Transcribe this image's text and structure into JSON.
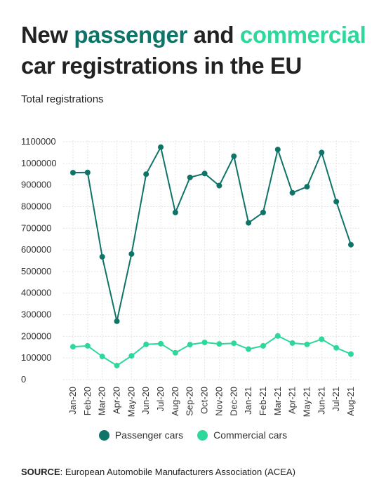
{
  "title": {
    "part1": "New ",
    "highlight1": "passenger",
    "part2": " and ",
    "highlight2": "commercial",
    "part3": "car registrations in the EU"
  },
  "subtitle": "Total registrations",
  "source": {
    "label": "SOURCE",
    "text": ": European Automobile Manufacturers Association (ACEA)"
  },
  "colors": {
    "passenger": "#0e7468",
    "commercial": "#2ed89a"
  },
  "chart_data": {
    "type": "line",
    "categories": [
      "Jan-20",
      "Feb-20",
      "Mar-20",
      "Apr-20",
      "May-20",
      "Jun-20",
      "Jul-20",
      "Aug-20",
      "Sep-20",
      "Oct-20",
      "Nov-20",
      "Dec-20",
      "Jan-21",
      "Feb-21",
      "Mar-21",
      "Apr-21",
      "May-21",
      "Jun-21",
      "Jul-21",
      "Aug-21"
    ],
    "ylim": [
      0,
      1100000
    ],
    "yticks": [
      "0",
      "100000",
      "200000",
      "300000",
      "400000",
      "500000",
      "600000",
      "700000",
      "800000",
      "900000",
      "1000000",
      "1100000"
    ],
    "grid": true,
    "legend_position": "bottom-center",
    "series": [
      {
        "name": "Passenger cars",
        "color": "#0e7468",
        "values": [
          957000,
          958000,
          568000,
          270000,
          581000,
          950000,
          1075000,
          773000,
          935000,
          953000,
          897000,
          1033000,
          725000,
          773000,
          1064000,
          864000,
          892000,
          1050000,
          823000,
          624000
        ]
      },
      {
        "name": "Commercial cars",
        "color": "#2ed89a",
        "values": [
          152000,
          156000,
          107000,
          65000,
          110000,
          163000,
          166000,
          124000,
          162000,
          172000,
          165000,
          168000,
          141000,
          156000,
          202000,
          169000,
          163000,
          187000,
          147000,
          118000
        ]
      }
    ]
  }
}
